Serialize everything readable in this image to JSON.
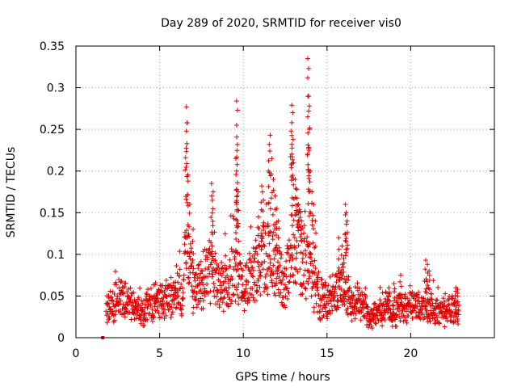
{
  "chart_data": {
    "type": "scatter",
    "title": "Day 289 of 2020, SRMTID for receiver vis0",
    "xlabel": "GPS time / hours",
    "ylabel": "SRMTID / TECUs",
    "xlim": [
      0,
      25
    ],
    "ylim": [
      0,
      0.35
    ],
    "x_ticks": [
      0,
      5,
      10,
      15,
      20
    ],
    "x_tick_labels": [
      "0",
      "5",
      "10",
      "15",
      "20"
    ],
    "y_ticks": [
      0,
      0.05,
      0.1,
      0.15,
      0.2,
      0.25,
      0.3,
      0.35
    ],
    "y_tick_labels": [
      "0",
      "0.05",
      "0.1",
      "0.15",
      "0.2",
      "0.25",
      "0.3",
      "0.35"
    ],
    "grid": true,
    "marker": "plus",
    "marker_color": "#e00000",
    "series": [
      {
        "name": "SRMTID",
        "color": "#e00000",
        "marker": "plus",
        "x_range": [
          1.6,
          22.9
        ],
        "approximate_envelope": [
          [
            1.6,
            0.0
          ],
          [
            1.8,
            0.03
          ],
          [
            2.0,
            0.035
          ],
          [
            2.5,
            0.05
          ],
          [
            3.0,
            0.045
          ],
          [
            3.5,
            0.035
          ],
          [
            4.0,
            0.03
          ],
          [
            4.5,
            0.04
          ],
          [
            5.0,
            0.045
          ],
          [
            5.5,
            0.045
          ],
          [
            6.0,
            0.05
          ],
          [
            6.4,
            0.06
          ],
          [
            6.6,
            0.12
          ],
          [
            7.0,
            0.06
          ],
          [
            7.5,
            0.07
          ],
          [
            8.0,
            0.08
          ],
          [
            8.5,
            0.06
          ],
          [
            9.0,
            0.06
          ],
          [
            9.5,
            0.08
          ],
          [
            10.0,
            0.06
          ],
          [
            10.5,
            0.07
          ],
          [
            11.0,
            0.09
          ],
          [
            11.5,
            0.1
          ],
          [
            12.0,
            0.08
          ],
          [
            12.5,
            0.06
          ],
          [
            13.0,
            0.12
          ],
          [
            13.5,
            0.1
          ],
          [
            14.0,
            0.08
          ],
          [
            14.5,
            0.045
          ],
          [
            15.0,
            0.05
          ],
          [
            15.5,
            0.05
          ],
          [
            16.0,
            0.06
          ],
          [
            16.5,
            0.04
          ],
          [
            17.0,
            0.045
          ],
          [
            17.5,
            0.025
          ],
          [
            18.0,
            0.03
          ],
          [
            18.5,
            0.035
          ],
          [
            19.0,
            0.03
          ],
          [
            19.5,
            0.035
          ],
          [
            20.0,
            0.04
          ],
          [
            20.5,
            0.035
          ],
          [
            21.0,
            0.04
          ],
          [
            21.5,
            0.03
          ],
          [
            22.0,
            0.03
          ],
          [
            22.5,
            0.035
          ],
          [
            22.9,
            0.03
          ]
        ],
        "spikes": [
          {
            "x": 6.6,
            "y": 0.277
          },
          {
            "x": 6.65,
            "y": 0.258
          },
          {
            "x": 6.6,
            "y": 0.248
          },
          {
            "x": 6.55,
            "y": 0.216
          },
          {
            "x": 6.7,
            "y": 0.188
          },
          {
            "x": 6.8,
            "y": 0.16
          },
          {
            "x": 7.0,
            "y": 0.13
          },
          {
            "x": 8.1,
            "y": 0.185
          },
          {
            "x": 8.2,
            "y": 0.175
          },
          {
            "x": 8.15,
            "y": 0.165
          },
          {
            "x": 9.6,
            "y": 0.284
          },
          {
            "x": 9.65,
            "y": 0.273
          },
          {
            "x": 9.6,
            "y": 0.255
          },
          {
            "x": 9.55,
            "y": 0.215
          },
          {
            "x": 9.6,
            "y": 0.2
          },
          {
            "x": 9.65,
            "y": 0.186
          },
          {
            "x": 9.7,
            "y": 0.175
          },
          {
            "x": 9.6,
            "y": 0.16
          },
          {
            "x": 10.9,
            "y": 0.145
          },
          {
            "x": 11.1,
            "y": 0.182
          },
          {
            "x": 11.2,
            "y": 0.165
          },
          {
            "x": 11.6,
            "y": 0.243
          },
          {
            "x": 11.55,
            "y": 0.232
          },
          {
            "x": 11.7,
            "y": 0.215
          },
          {
            "x": 11.5,
            "y": 0.2
          },
          {
            "x": 11.8,
            "y": 0.19
          },
          {
            "x": 11.9,
            "y": 0.17
          },
          {
            "x": 12.0,
            "y": 0.155
          },
          {
            "x": 12.1,
            "y": 0.14
          },
          {
            "x": 12.9,
            "y": 0.279
          },
          {
            "x": 12.95,
            "y": 0.27
          },
          {
            "x": 12.9,
            "y": 0.258
          },
          {
            "x": 12.85,
            "y": 0.248
          },
          {
            "x": 12.9,
            "y": 0.232
          },
          {
            "x": 13.0,
            "y": 0.21
          },
          {
            "x": 13.1,
            "y": 0.19
          },
          {
            "x": 13.2,
            "y": 0.178
          },
          {
            "x": 13.3,
            "y": 0.16
          },
          {
            "x": 13.4,
            "y": 0.15
          },
          {
            "x": 13.5,
            "y": 0.14
          },
          {
            "x": 13.85,
            "y": 0.335
          },
          {
            "x": 13.9,
            "y": 0.323
          },
          {
            "x": 13.85,
            "y": 0.312
          },
          {
            "x": 13.95,
            "y": 0.278
          },
          {
            "x": 13.9,
            "y": 0.272
          },
          {
            "x": 13.95,
            "y": 0.25
          },
          {
            "x": 13.9,
            "y": 0.227
          },
          {
            "x": 14.0,
            "y": 0.2
          },
          {
            "x": 14.1,
            "y": 0.175
          },
          {
            "x": 14.2,
            "y": 0.16
          },
          {
            "x": 14.3,
            "y": 0.14
          },
          {
            "x": 16.1,
            "y": 0.16
          },
          {
            "x": 16.15,
            "y": 0.15
          },
          {
            "x": 16.2,
            "y": 0.14
          },
          {
            "x": 16.1,
            "y": 0.125
          },
          {
            "x": 15.7,
            "y": 0.12
          },
          {
            "x": 15.9,
            "y": 0.11
          },
          {
            "x": 16.0,
            "y": 0.095
          },
          {
            "x": 18.7,
            "y": 0.06
          },
          {
            "x": 19.0,
            "y": 0.065
          },
          {
            "x": 19.4,
            "y": 0.075
          },
          {
            "x": 20.9,
            "y": 0.093
          },
          {
            "x": 21.0,
            "y": 0.088
          },
          {
            "x": 21.1,
            "y": 0.08
          },
          {
            "x": 22.7,
            "y": 0.06
          },
          {
            "x": 22.8,
            "y": 0.058
          }
        ],
        "isolated_points": [
          {
            "x": 1.6,
            "y": 0.0
          }
        ]
      }
    ]
  }
}
